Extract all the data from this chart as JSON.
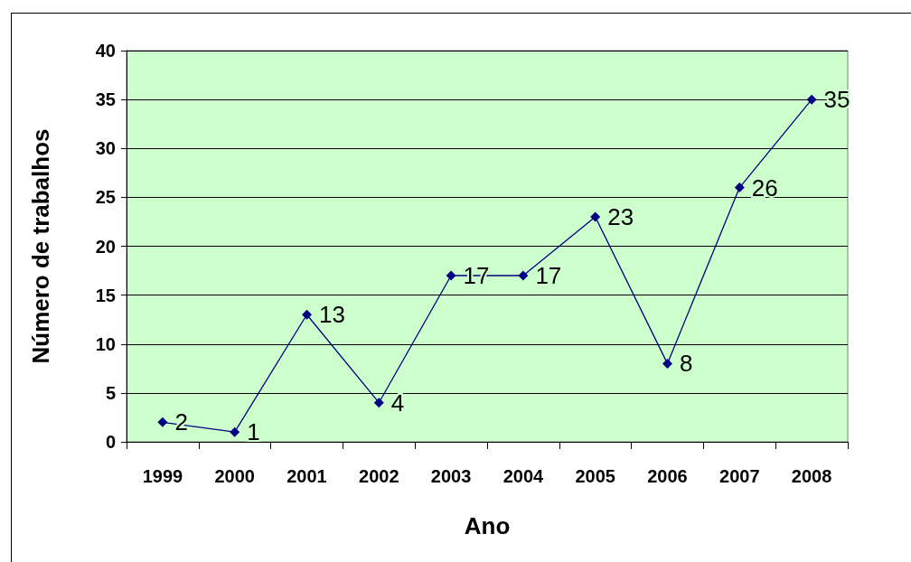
{
  "chart_data": {
    "type": "line",
    "xlabel": "Ano",
    "ylabel": "Número de trabalhos",
    "categories": [
      "1999",
      "2000",
      "2001",
      "2002",
      "2003",
      "2004",
      "2005",
      "2006",
      "2007",
      "2008"
    ],
    "series": [
      {
        "color": "#000080",
        "values": [
          2,
          1,
          13,
          4,
          17,
          17,
          23,
          8,
          26,
          35
        ]
      }
    ],
    "ylim": [
      0,
      40
    ],
    "yticks": [
      0,
      5,
      10,
      15,
      20,
      25,
      30,
      35,
      40
    ],
    "grid": "y",
    "marker": "diamond",
    "line_style": "solid",
    "data_labels": true
  }
}
